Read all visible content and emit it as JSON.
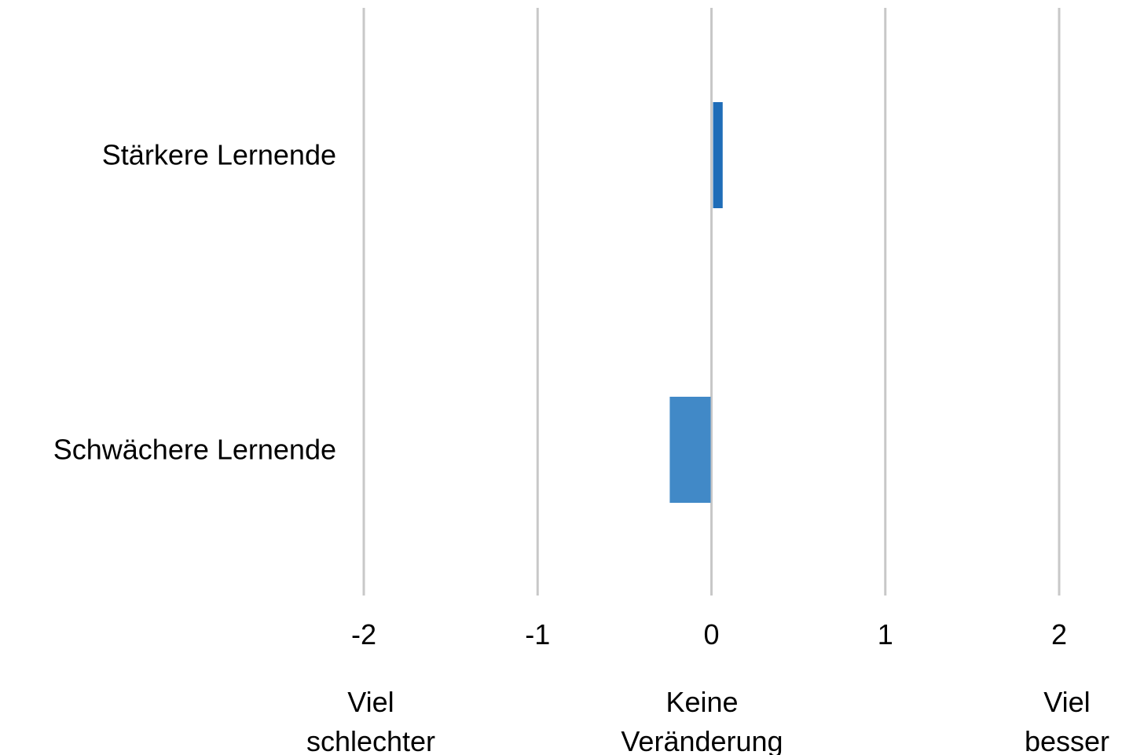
{
  "chart_data": {
    "type": "bar",
    "orientation": "horizontal",
    "title": "",
    "xlabel": "",
    "ylabel": "",
    "categories": [
      "Stärkere Lernende",
      "Schwächere Lernende"
    ],
    "values": [
      0.06,
      -0.24
    ],
    "bar_colors": [
      "#1f6db8",
      "#4189c7"
    ],
    "xlim": [
      -2,
      2
    ],
    "xticks": [
      -2,
      -1,
      0,
      1,
      2
    ],
    "xtick_labels": [
      "-2",
      "-1",
      "0",
      "1",
      "2"
    ],
    "grid": "vertical",
    "grid_color": "#c8c8c8",
    "legend": "none",
    "annotations": [
      {
        "x": -2,
        "lines": [
          "Viel",
          "schlechter"
        ]
      },
      {
        "x": 0,
        "lines": [
          "Keine",
          "Veränderung"
        ]
      },
      {
        "x": 2,
        "lines": [
          "Viel",
          "besser"
        ]
      }
    ]
  }
}
